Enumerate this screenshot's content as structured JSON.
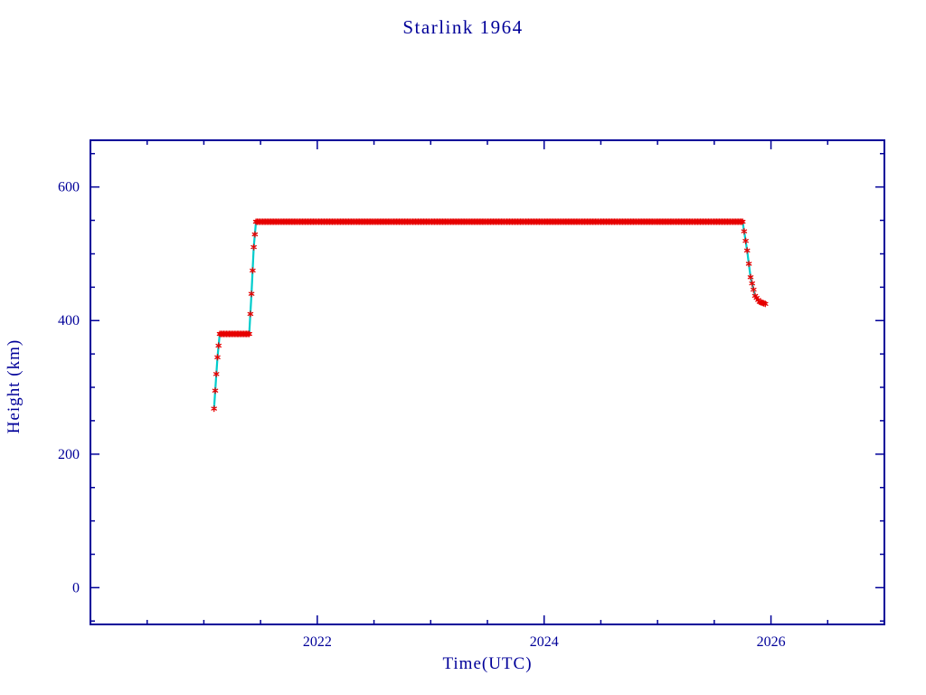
{
  "chart_data": {
    "type": "scatter",
    "title": "Starlink 1964",
    "xlabel": "Time(UTC)",
    "ylabel": "Height (km)",
    "xlim": [
      2020.0,
      2027.0
    ],
    "ylim": [
      -55,
      670
    ],
    "x_ticks": [
      2022,
      2024,
      2026
    ],
    "y_ticks": [
      0,
      200,
      400,
      600
    ],
    "x_minor_step": 0.5,
    "y_minor_step": 50,
    "grid": false,
    "legend": false,
    "marker": "asterisk",
    "colors": {
      "frame": "#000099",
      "text": "#000099",
      "marker": "#e60000",
      "line": "#00cccc"
    },
    "series": [
      {
        "name": "orbital-height",
        "points": [
          [
            2021.09,
            268
          ],
          [
            2021.1,
            295
          ],
          [
            2021.12,
            345
          ],
          [
            2021.14,
            380
          ],
          [
            2021.4,
            380
          ],
          [
            2021.42,
            440
          ],
          [
            2021.44,
            510
          ],
          [
            2021.46,
            548
          ],
          [
            2025.75,
            548
          ],
          [
            2025.79,
            505
          ],
          [
            2025.82,
            465
          ],
          [
            2025.86,
            437
          ],
          [
            2025.9,
            428
          ],
          [
            2025.95,
            425
          ]
        ]
      }
    ]
  }
}
